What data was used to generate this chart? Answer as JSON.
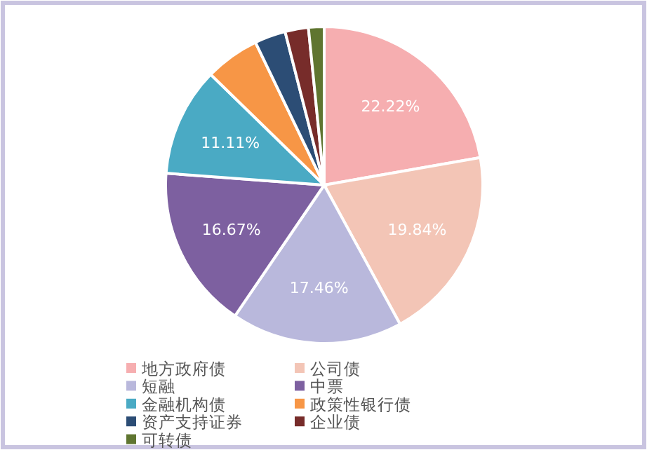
{
  "chart_data": {
    "type": "pie",
    "categories": [
      "地方政府债",
      "公司债",
      "短融",
      "中票",
      "金融机构债",
      "政策性银行债",
      "资产支持证券",
      "企业债",
      "可转债"
    ],
    "values": [
      22.22,
      19.84,
      17.46,
      16.67,
      11.11,
      5.56,
      3.17,
      2.38,
      1.59
    ],
    "colors": [
      "#f6aeb0",
      "#f3c5b6",
      "#b9b8dc",
      "#7d60a0",
      "#4aaac4",
      "#f79646",
      "#2c4d75",
      "#772c2a",
      "#5f7530"
    ],
    "value_labels": [
      "22.22%",
      "19.84%",
      "17.46%",
      "16.67%",
      "11.11%",
      null,
      null,
      null,
      null
    ],
    "legend": "bottom"
  }
}
